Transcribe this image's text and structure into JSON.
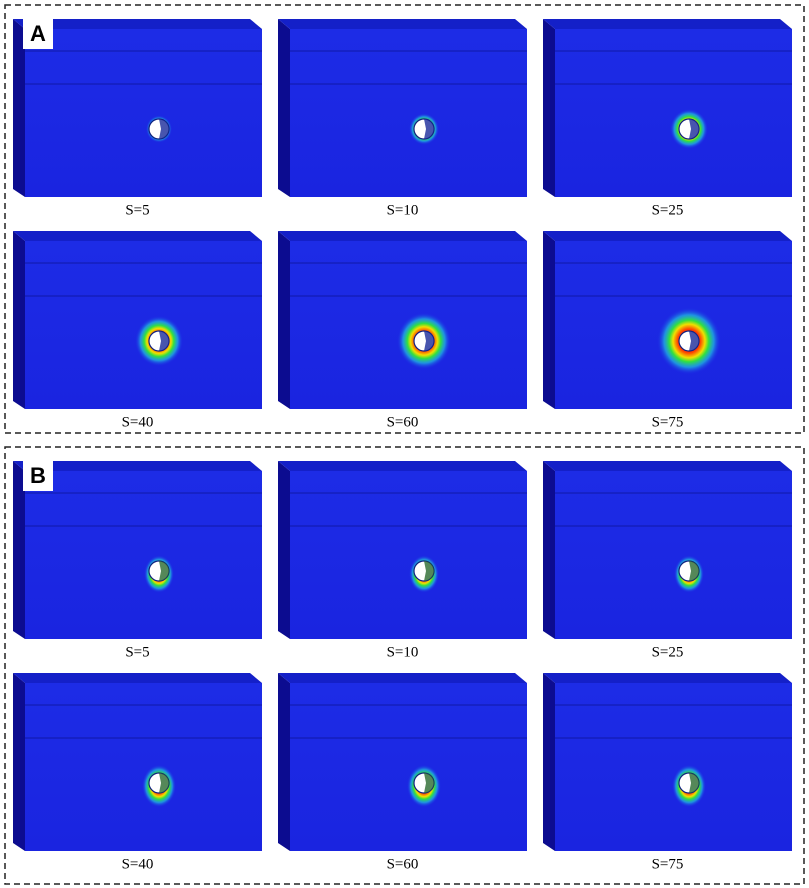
{
  "panels": [
    {
      "label": "A",
      "captions": [
        "S=5",
        "S=10",
        "S=25",
        "S=40",
        "S=60",
        "S=75"
      ]
    },
    {
      "label": "B",
      "captions": [
        "S=5",
        "S=10",
        "S=25",
        "S=40",
        "S=60",
        "S=75"
      ]
    }
  ]
}
